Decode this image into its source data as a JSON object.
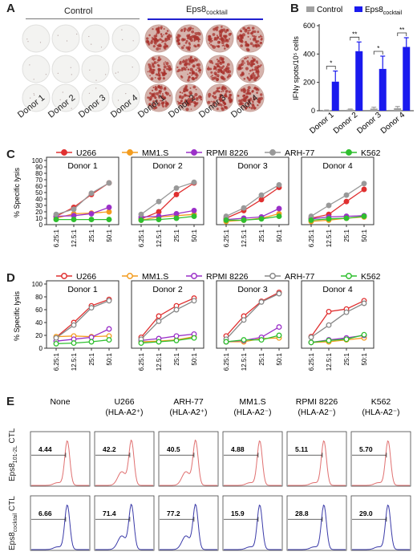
{
  "panels": {
    "A": {
      "letter": "A",
      "groups": [
        "Control",
        "Eps8cocktail"
      ],
      "donors": [
        "Donor 1",
        "Donor 2",
        "Donor 3",
        "Donor 4"
      ]
    },
    "B": {
      "letter": "B"
    },
    "C": {
      "letter": "C"
    },
    "D": {
      "letter": "D"
    },
    "E": {
      "letter": "E",
      "columns": [
        {
          "title": "None",
          "sub": ""
        },
        {
          "title": "U266",
          "sub": "(HLA-A2⁺)"
        },
        {
          "title": "ARH-77",
          "sub": "(HLA-A2⁺)"
        },
        {
          "title": "MM1.S",
          "sub": "(HLA-A2⁻)"
        },
        {
          "title": "RPMI 8226",
          "sub": "(HLA-A2⁻)"
        },
        {
          "title": "K562",
          "sub": "(HLA-A2⁻)"
        }
      ],
      "row_labels": [
        "Eps8₁₀₁₋₂ₖ CTL",
        "Eps8cocktail CTL"
      ],
      "row1_values": [
        "4.44",
        "42.2",
        "40.5",
        "4.88",
        "5.11",
        "5.70"
      ],
      "row2_values": [
        "6.66",
        "71.4",
        "77.2",
        "15.9",
        "28.8",
        "29.0"
      ],
      "colors": {
        "row1": "#e07070",
        "row2": "#3a3aa8"
      }
    }
  },
  "chart_data": [
    {
      "type": "bar",
      "panel": "B",
      "categories": [
        "Donor 1",
        "Donor 2",
        "Donor 3",
        "Donor 4"
      ],
      "series": [
        {
          "name": "Control",
          "color": "#a0a0a0",
          "values": [
            3,
            8,
            15,
            18
          ],
          "errors": [
            2,
            4,
            10,
            12
          ]
        },
        {
          "name": "Eps8cocktail",
          "color": "#1a1aee",
          "values": [
            205,
            420,
            295,
            450
          ],
          "errors": [
            75,
            65,
            90,
            65
          ]
        }
      ],
      "ylabel": "IFNγ spots/10⁵ cells",
      "ylim": [
        0,
        600
      ],
      "yticks": [
        "0",
        "200",
        "400",
        "600"
      ],
      "significance": [
        "*",
        "**",
        "*",
        "**"
      ]
    },
    {
      "type": "line",
      "panel": "C",
      "ylabel": "% Specific lysis",
      "ylim": [
        0,
        100
      ],
      "yticks": [
        "0",
        "10",
        "20",
        "30",
        "40",
        "50",
        "60",
        "70",
        "80",
        "90",
        "100"
      ],
      "x": [
        "6.25:1",
        "12.5:1",
        "25:1",
        "50:1"
      ],
      "legend": [
        {
          "name": "U266",
          "color": "#e03030"
        },
        {
          "name": "MM1.S",
          "color": "#f39c1f"
        },
        {
          "name": "RPMI 8226",
          "color": "#9b30c8"
        },
        {
          "name": "ARH-77",
          "color": "#999999"
        },
        {
          "name": "K562",
          "color": "#2fbf2f"
        }
      ],
      "facets": [
        {
          "title": "Donor 1",
          "series": [
            [
              13,
              27,
              47,
              65
            ],
            [
              10,
              17,
              18,
              20
            ],
            [
              13,
              14,
              17,
              27
            ],
            [
              16,
              24,
              49,
              65
            ],
            [
              8,
              8,
              8,
              8
            ]
          ]
        },
        {
          "title": "Donor 2",
          "series": [
            [
              9,
              20,
              47,
              65
            ],
            [
              7,
              12,
              14,
              16
            ],
            [
              12,
              13,
              17,
              22
            ],
            [
              16,
              36,
              57,
              66
            ],
            [
              7,
              8,
              10,
              13
            ]
          ]
        },
        {
          "title": "Donor 3",
          "series": [
            [
              10,
              22,
              39,
              58
            ],
            [
              5,
              7,
              10,
              17
            ],
            [
              8,
              10,
              12,
              25
            ],
            [
              13,
              26,
              46,
              62
            ],
            [
              7,
              7,
              9,
              13
            ]
          ]
        },
        {
          "title": "Donor 4",
          "series": [
            [
              10,
              16,
              36,
              55
            ],
            [
              5,
              7,
              10,
              12
            ],
            [
              9,
              12,
              13,
              14
            ],
            [
              13,
              30,
              46,
              64
            ],
            [
              7,
              9,
              10,
              13
            ]
          ]
        }
      ]
    },
    {
      "type": "line",
      "panel": "D",
      "ylabel": "% Specific lysis",
      "ylim": [
        0,
        100
      ],
      "yticks": [
        "0",
        "20",
        "40",
        "60",
        "80",
        "100"
      ],
      "x": [
        "6.25:1",
        "12.5:1",
        "25:1",
        "50:1"
      ],
      "markers": "open",
      "legend": [
        {
          "name": "U266",
          "color": "#e03030"
        },
        {
          "name": "MM1.S",
          "color": "#f39c1f"
        },
        {
          "name": "RPMI 8226",
          "color": "#9b30c8"
        },
        {
          "name": "ARH-77",
          "color": "#888888"
        },
        {
          "name": "K562",
          "color": "#2fbf2f"
        }
      ],
      "facets": [
        {
          "title": "Donor 1",
          "series": [
            [
              17,
              40,
              66,
              76
            ],
            [
              18,
              19,
              18,
              19
            ],
            [
              11,
              14,
              17,
              30
            ],
            [
              16,
              36,
              63,
              74
            ],
            [
              7,
              8,
              10,
              13
            ]
          ]
        },
        {
          "title": "Donor 2",
          "series": [
            [
              17,
              50,
              66,
              78
            ],
            [
              10,
              11,
              13,
              18
            ],
            [
              12,
              15,
              19,
              22
            ],
            [
              14,
              42,
              60,
              74
            ],
            [
              8,
              10,
              12,
              16
            ]
          ]
        },
        {
          "title": "Donor 3",
          "series": [
            [
              19,
              50,
              73,
              87
            ],
            [
              10,
              10,
              15,
              16
            ],
            [
              10,
              12,
              17,
              33
            ],
            [
              14,
              44,
              72,
              85
            ],
            [
              10,
              13,
              13,
              20
            ]
          ]
        },
        {
          "title": "Donor 4",
          "series": [
            [
              18,
              57,
              61,
              74
            ],
            [
              9,
              10,
              13,
              16
            ],
            [
              9,
              13,
              16,
              20
            ],
            [
              17,
              36,
              56,
              70
            ],
            [
              9,
              12,
              14,
              21
            ]
          ]
        }
      ]
    }
  ]
}
